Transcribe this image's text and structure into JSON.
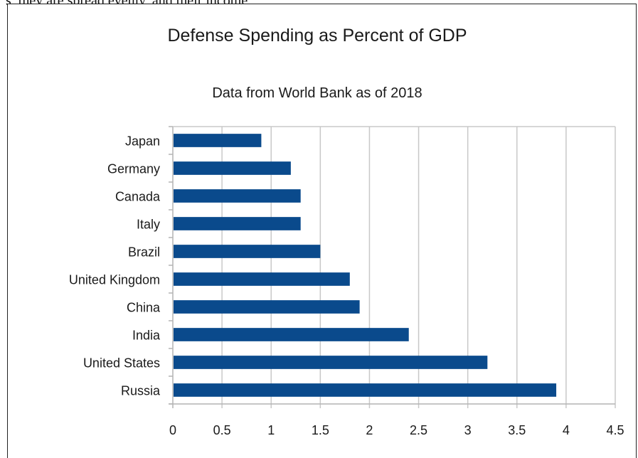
{
  "header_fragment": "s, they are spread evenly, and their income",
  "chart_data": {
    "type": "bar",
    "orientation": "horizontal",
    "title": "Defense Spending as Percent of GDP",
    "subtitle": "Data from World Bank as of 2018",
    "xlabel": "",
    "ylabel": "",
    "categories": [
      "Japan",
      "Germany",
      "Canada",
      "Italy",
      "Brazil",
      "United Kingdom",
      "China",
      "India",
      "United States",
      "Russia"
    ],
    "values": [
      0.9,
      1.2,
      1.3,
      1.3,
      1.5,
      1.8,
      1.9,
      2.4,
      3.2,
      3.9
    ],
    "xlim": [
      0,
      4.5
    ],
    "x_ticks": [
      "0",
      "0.5",
      "1",
      "1.5",
      "2",
      "2.5",
      "3",
      "3.5",
      "4",
      "4.5"
    ],
    "grid": true,
    "legend": "none",
    "bar_color": "#0a4a8c"
  }
}
